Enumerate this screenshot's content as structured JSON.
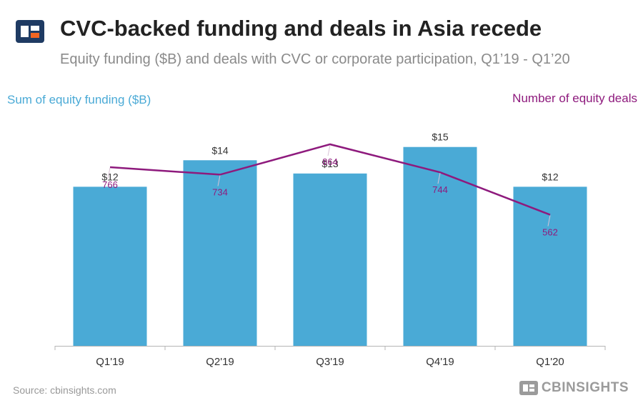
{
  "header": {
    "title": "CVC-backed funding and deals in Asia recede",
    "subtitle": "Equity funding ($B) and deals with CVC or corporate participation, Q1’19 - Q1’20"
  },
  "colors": {
    "bar": "#4aaad6",
    "line": "#8e1a7d",
    "logo_dark": "#1f3b63",
    "logo_accent": "#f26522"
  },
  "footer": {
    "source": "Source: cbinsights.com",
    "brand": "CBINSIGHTS"
  },
  "chart_data": {
    "type": "bar",
    "categories": [
      "Q1'19",
      "Q2'19",
      "Q3'19",
      "Q4'19",
      "Q1'20"
    ],
    "ylabel": "Sum of equity funding ($B)",
    "y2label": "Number of equity deals",
    "series": [
      {
        "name": "Sum of equity funding ($B)",
        "type": "bar",
        "axis": "left",
        "values": [
          12,
          14,
          13,
          15,
          12
        ],
        "labels": [
          "$12",
          "$14",
          "$13",
          "$15",
          "$12"
        ]
      },
      {
        "name": "Number of equity deals",
        "type": "line",
        "axis": "right",
        "values": [
          766,
          734,
          864,
          744,
          562
        ],
        "labels": [
          "766",
          "734",
          "864",
          "744",
          "562"
        ]
      }
    ],
    "ylim": [
      0,
      18.65
    ],
    "y2lim": [
      0,
      1060
    ],
    "grid": false,
    "legend": "axis titles top-left and top-right"
  }
}
